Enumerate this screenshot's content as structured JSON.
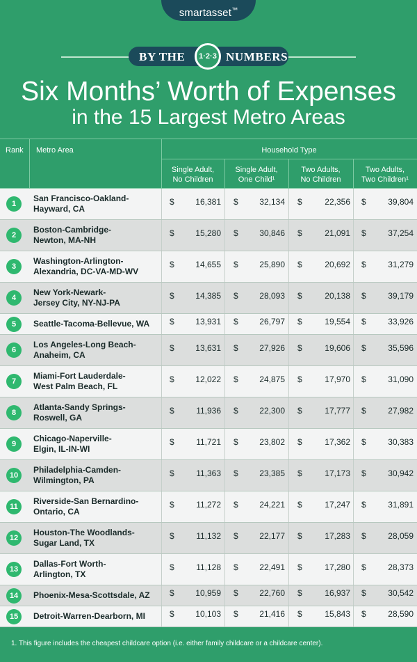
{
  "header": {
    "brand": "smartasset",
    "brand_mark": "™",
    "banner_left": "BY THE",
    "banner_badge": "1·2·3",
    "banner_right": "NUMBERS",
    "title_line1": "Six Months’ Worth of Expenses",
    "title_line2": "in the 15 Largest Metro Areas"
  },
  "footnote": "1. This figure includes the cheapest childcare option (i.e. either family childcare or a childcare center).",
  "colors": {
    "background": "#2f9e6b",
    "badge": "#1b4a5a",
    "rank_circle": "#2fb86f"
  },
  "chart_data": {
    "type": "table",
    "columns": {
      "rank": "Rank",
      "metro": "Metro Area",
      "group": "Household Type",
      "types": [
        {
          "line1": "Single Adult,",
          "line2": "No Children"
        },
        {
          "line1": "Single Adult,",
          "line2": "One Child¹"
        },
        {
          "line1": "Two Adults,",
          "line2": "No Children"
        },
        {
          "line1": "Two Adults,",
          "line2": "Two Children¹"
        }
      ]
    },
    "currency_symbol": "$",
    "rows": [
      {
        "rank": "1",
        "metro_line1": "San Francisco-Oakland-",
        "metro_line2": "Hayward, CA",
        "values": [
          "16,381",
          "32,134",
          "22,356",
          "39,804"
        ]
      },
      {
        "rank": "2",
        "metro_line1": "Boston-Cambridge-",
        "metro_line2": "Newton, MA-NH",
        "values": [
          "15,280",
          "30,846",
          "21,091",
          "37,254"
        ]
      },
      {
        "rank": "3",
        "metro_line1": "Washington-Arlington-",
        "metro_line2": "Alexandria, DC-VA-MD-WV",
        "values": [
          "14,655",
          "25,890",
          "20,692",
          "31,279"
        ]
      },
      {
        "rank": "4",
        "metro_line1": "New York-Newark-",
        "metro_line2": "Jersey City, NY-NJ-PA",
        "values": [
          "14,385",
          "28,093",
          "20,138",
          "39,179"
        ]
      },
      {
        "rank": "5",
        "metro_line1": "Seattle-Tacoma-Bellevue, WA",
        "metro_line2": "",
        "values": [
          "13,931",
          "26,797",
          "19,554",
          "33,926"
        ]
      },
      {
        "rank": "6",
        "metro_line1": "Los Angeles-Long Beach-",
        "metro_line2": "Anaheim, CA",
        "values": [
          "13,631",
          "27,926",
          "19,606",
          "35,596"
        ]
      },
      {
        "rank": "7",
        "metro_line1": "Miami-Fort Lauderdale-",
        "metro_line2": "West Palm Beach, FL",
        "values": [
          "12,022",
          "24,875",
          "17,970",
          "31,090"
        ]
      },
      {
        "rank": "8",
        "metro_line1": "Atlanta-Sandy Springs-",
        "metro_line2": "Roswell, GA",
        "values": [
          "11,936",
          "22,300",
          "17,777",
          "27,982"
        ]
      },
      {
        "rank": "9",
        "metro_line1": "Chicago-Naperville-",
        "metro_line2": "Elgin, IL-IN-WI",
        "values": [
          "11,721",
          "23,802",
          "17,362",
          "30,383"
        ]
      },
      {
        "rank": "10",
        "metro_line1": "Philadelphia-Camden-",
        "metro_line2": "Wilmington, PA",
        "values": [
          "11,363",
          "23,385",
          "17,173",
          "30,942"
        ]
      },
      {
        "rank": "11",
        "metro_line1": "Riverside-San Bernardino-",
        "metro_line2": "Ontario, CA",
        "values": [
          "11,272",
          "24,221",
          "17,247",
          "31,891"
        ]
      },
      {
        "rank": "12",
        "metro_line1": "Houston-The Woodlands-",
        "metro_line2": "Sugar Land, TX",
        "values": [
          "11,132",
          "22,177",
          "17,283",
          "28,059"
        ]
      },
      {
        "rank": "13",
        "metro_line1": "Dallas-Fort Worth-",
        "metro_line2": "Arlington, TX",
        "values": [
          "11,128",
          "22,491",
          "17,280",
          "28,373"
        ]
      },
      {
        "rank": "14",
        "metro_line1": "Phoenix-Mesa-Scottsdale, AZ",
        "metro_line2": "",
        "values": [
          "10,959",
          "22,760",
          "16,937",
          "30,542"
        ]
      },
      {
        "rank": "15",
        "metro_line1": "Detroit-Warren-Dearborn, MI",
        "metro_line2": "",
        "values": [
          "10,103",
          "21,416",
          "15,843",
          "28,590"
        ]
      }
    ]
  }
}
